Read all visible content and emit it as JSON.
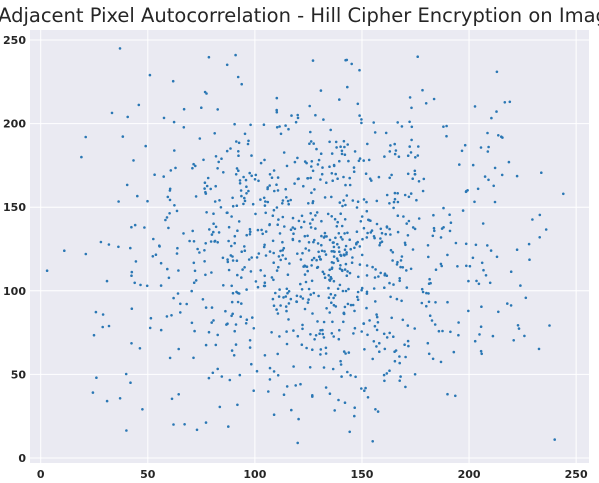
{
  "chart_data": {
    "type": "scatter",
    "title": "Adjacent Pixel Autocorrelation - Hill Cipher Encryption on Image",
    "xlabel": "",
    "ylabel": "",
    "xlim": [
      -5,
      256
    ],
    "ylim": [
      -3,
      256
    ],
    "x_ticks": [
      0,
      50,
      100,
      150,
      200,
      250
    ],
    "y_ticks": [
      0,
      50,
      100,
      150,
      200,
      250
    ],
    "grid": true,
    "background_color": "#eaeaf2",
    "series": [
      {
        "color": "#2a77b4",
        "distribution": "pseudo-random cloud of about 1000 points, densest in the central x 55–210 range, thinning toward the edges; isolated outliers listed below",
        "outliers": [
          {
            "x": 3,
            "y": 112
          },
          {
            "x": 26,
            "y": 48
          },
          {
            "x": 37,
            "y": 245
          },
          {
            "x": 31,
            "y": 34
          },
          {
            "x": 51,
            "y": 229
          },
          {
            "x": 62,
            "y": 20
          },
          {
            "x": 120,
            "y": 9
          },
          {
            "x": 155,
            "y": 10
          },
          {
            "x": 240,
            "y": 11
          },
          {
            "x": 244,
            "y": 158
          },
          {
            "x": 213,
            "y": 231
          },
          {
            "x": 91,
            "y": 241
          },
          {
            "x": 176,
            "y": 240
          },
          {
            "x": 11,
            "y": 124
          },
          {
            "x": 19,
            "y": 180
          },
          {
            "x": 21,
            "y": 192
          }
        ]
      }
    ]
  }
}
